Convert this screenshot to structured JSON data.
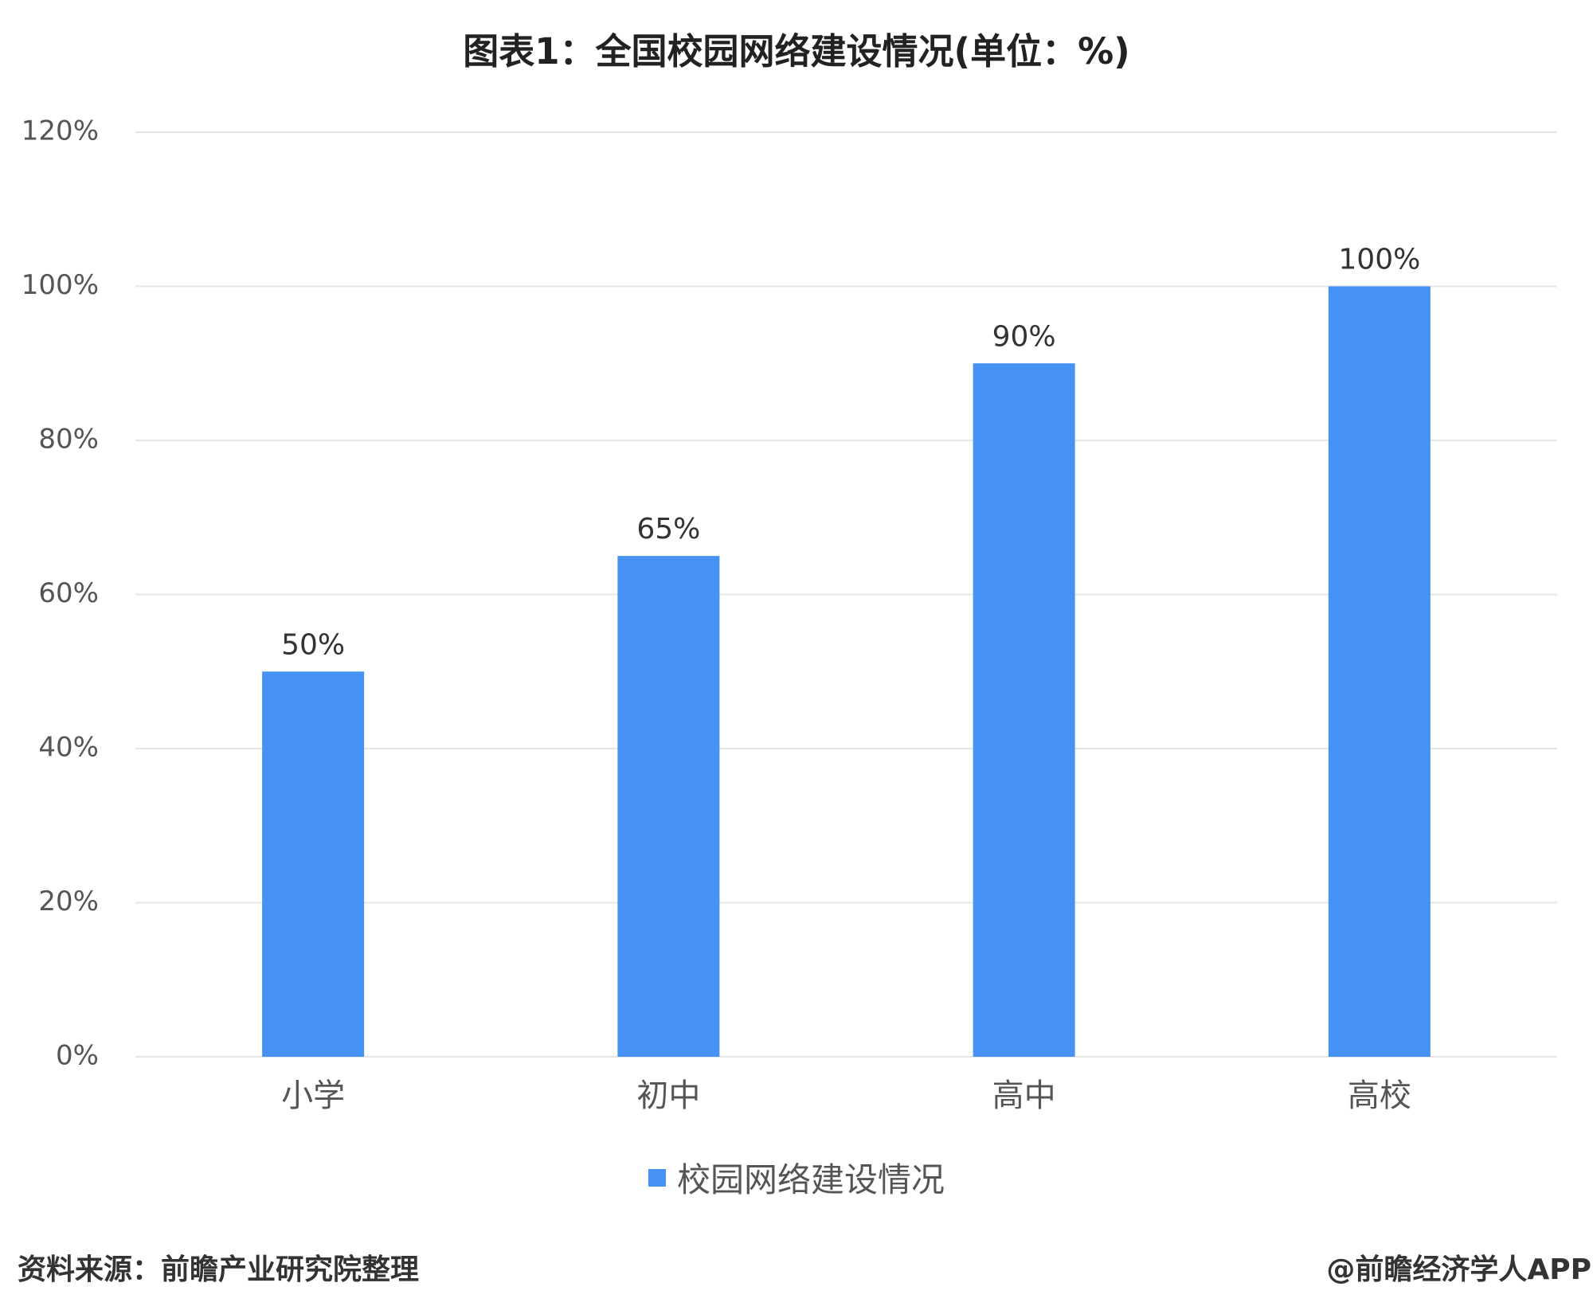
{
  "chart_data": {
    "type": "bar",
    "title": "图表1：全国校园网络建设情况(单位：%)",
    "categories": [
      "小学",
      "初中",
      "高中",
      "高校"
    ],
    "series": [
      {
        "name": "校园网络建设情况",
        "values": [
          50,
          65,
          90,
          100
        ],
        "labels": [
          "50%",
          "65%",
          "90%",
          "100%"
        ],
        "color": "#4592f4"
      }
    ],
    "ylim": [
      0,
      120
    ],
    "yticks": [
      0,
      20,
      40,
      60,
      80,
      100,
      120
    ],
    "ytick_labels": [
      "0%",
      "20%",
      "40%",
      "60%",
      "80%",
      "100%",
      "120%"
    ],
    "grid": true,
    "legend": "bottom-center"
  },
  "footer": {
    "source": "资料来源：前瞻产业研究院整理",
    "brand": "@前瞻经济学人APP"
  },
  "colors": {
    "bar": "#4592f4",
    "grid": "#e6e6e6"
  }
}
